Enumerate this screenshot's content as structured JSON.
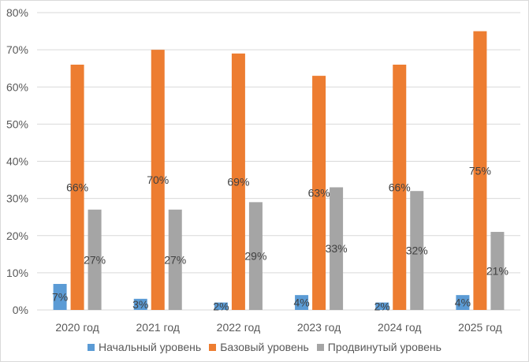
{
  "chart_data": {
    "type": "bar",
    "title": "",
    "xlabel": "",
    "ylabel": "",
    "ylim": [
      0,
      80
    ],
    "yticks": [
      "0%",
      "10%",
      "20%",
      "30%",
      "40%",
      "50%",
      "60%",
      "70%",
      "80%"
    ],
    "grid": true,
    "legend_position": "bottom",
    "categories": [
      "2020 год",
      "2021 год",
      "2022 год",
      "2023 год",
      "2024 год",
      "2025 год"
    ],
    "series": [
      {
        "name": "Начальный уровень",
        "color": "#5b9bd5",
        "values": [
          7,
          3,
          2,
          4,
          2,
          4
        ],
        "labels": [
          "7%",
          "3%",
          "2%",
          "4%",
          "2%",
          "4%"
        ]
      },
      {
        "name": "Базовый уровень",
        "color": "#ed7d31",
        "values": [
          66,
          70,
          69,
          63,
          66,
          75
        ],
        "labels": [
          "66%",
          "70%",
          "69%",
          "63%",
          "66%",
          "75%"
        ]
      },
      {
        "name": "Продвинутый уровень",
        "color": "#a5a5a5",
        "values": [
          27,
          27,
          29,
          33,
          32,
          21
        ],
        "labels": [
          "27%",
          "27%",
          "29%",
          "33%",
          "32%",
          "21%"
        ]
      }
    ]
  }
}
